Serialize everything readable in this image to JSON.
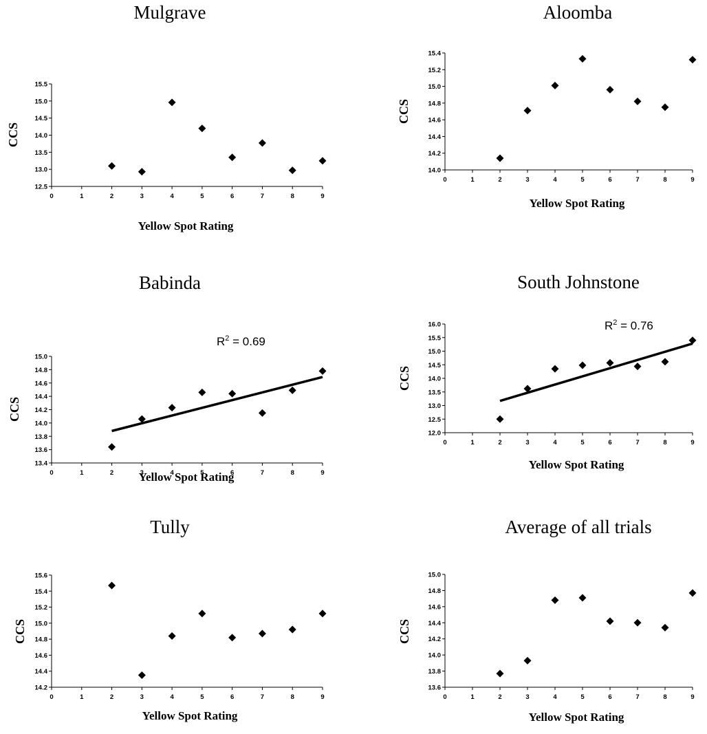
{
  "chart_data": [
    {
      "type": "scatter",
      "title": "Mulgrave",
      "xlabel": "Yellow Spot Rating",
      "ylabel": "CCS",
      "xlim": [
        0,
        9
      ],
      "ylim": [
        12.5,
        15.5
      ],
      "x_ticks": [
        0,
        1,
        2,
        3,
        4,
        5,
        6,
        7,
        8,
        9
      ],
      "y_ticks": [
        12.5,
        13.0,
        13.5,
        14.0,
        14.5,
        15.0,
        15.5
      ],
      "x_tick_labels": [
        "0",
        "1",
        "2",
        "3",
        "4",
        "5",
        "6",
        "7",
        "8",
        "9"
      ],
      "y_tick_labels": [
        "12.5",
        "13.0",
        "13.5",
        "14.0",
        "14.5",
        "15.0",
        "15.5"
      ],
      "x": [
        2,
        3,
        4,
        5,
        6,
        7,
        8,
        9
      ],
      "y": [
        13.1,
        12.93,
        14.96,
        14.2,
        13.35,
        13.77,
        12.97,
        13.25
      ],
      "grid": false
    },
    {
      "type": "scatter",
      "title": "Aloomba",
      "xlabel": "Yellow Spot Rating",
      "ylabel": "CCS",
      "xlim": [
        0,
        9
      ],
      "ylim": [
        14.0,
        15.4
      ],
      "x_ticks": [
        0,
        1,
        2,
        3,
        4,
        5,
        6,
        7,
        8,
        9
      ],
      "y_ticks": [
        14.0,
        14.2,
        14.4,
        14.6,
        14.8,
        15.0,
        15.2,
        15.4
      ],
      "x_tick_labels": [
        "0",
        "1",
        "2",
        "3",
        "4",
        "5",
        "6",
        "7",
        "8",
        "9"
      ],
      "y_tick_labels": [
        "14.0",
        "14.2",
        "14.4",
        "14.6",
        "14.8",
        "15.0",
        "15.2",
        "15.4"
      ],
      "x": [
        2,
        3,
        4,
        5,
        6,
        7,
        8,
        9
      ],
      "y": [
        14.14,
        14.71,
        15.01,
        15.33,
        14.96,
        14.82,
        14.75,
        15.32
      ],
      "grid": false
    },
    {
      "type": "scatter",
      "title": "Babinda",
      "xlabel": "Yellow Spot Rating",
      "ylabel": "CCS",
      "xlim": [
        0,
        9
      ],
      "ylim": [
        13.4,
        15.0
      ],
      "x_ticks": [
        0,
        1,
        2,
        3,
        4,
        5,
        6,
        7,
        8,
        9
      ],
      "y_ticks": [
        13.4,
        13.6,
        13.8,
        14.0,
        14.2,
        14.4,
        14.6,
        14.8,
        15.0
      ],
      "x_tick_labels": [
        "0",
        "1",
        "2",
        "3",
        "4",
        "5",
        "6",
        "7",
        "8",
        "9"
      ],
      "y_tick_labels": [
        "13.4",
        "13.6",
        "13.8",
        "14.0",
        "14.2",
        "14.4",
        "14.6",
        "14.8",
        "15.0"
      ],
      "x": [
        2,
        3,
        4,
        5,
        6,
        7,
        8,
        9
      ],
      "y": [
        13.64,
        14.06,
        14.23,
        14.46,
        14.44,
        14.15,
        14.49,
        14.78
      ],
      "trendline": {
        "x": [
          2,
          9
        ],
        "y": [
          13.88,
          14.69
        ]
      },
      "annotation": {
        "prefix": "R",
        "sup": "2",
        "suffix": " = 0.69"
      },
      "grid": false
    },
    {
      "type": "scatter",
      "title": "South Johnstone",
      "xlabel": "Yellow Spot Rating",
      "ylabel": "CCS",
      "xlim": [
        0,
        9
      ],
      "ylim": [
        12.0,
        16.0
      ],
      "x_ticks": [
        0,
        1,
        2,
        3,
        4,
        5,
        6,
        7,
        8,
        9
      ],
      "y_ticks": [
        12.0,
        12.5,
        13.0,
        13.5,
        14.0,
        14.5,
        15.0,
        15.5,
        16.0
      ],
      "x_tick_labels": [
        "0",
        "1",
        "2",
        "3",
        "4",
        "5",
        "6",
        "7",
        "8",
        "9"
      ],
      "y_tick_labels": [
        "12.0",
        "12.5",
        "13.0",
        "13.5",
        "14.0",
        "14.5",
        "15.0",
        "15.5",
        "16.0"
      ],
      "x": [
        2,
        3,
        4,
        5,
        6,
        7,
        8,
        9
      ],
      "y": [
        12.5,
        13.62,
        14.35,
        14.48,
        14.57,
        14.44,
        14.61,
        15.4
      ],
      "trendline": {
        "x": [
          2,
          9
        ],
        "y": [
          13.17,
          15.28
        ]
      },
      "annotation": {
        "prefix": "R",
        "sup": "2",
        "suffix": " = 0.76"
      },
      "grid": false
    },
    {
      "type": "scatter",
      "title": "Tully",
      "xlabel": "Yellow Spot Rating",
      "ylabel": "CCS",
      "xlim": [
        0,
        9
      ],
      "ylim": [
        14.2,
        15.6
      ],
      "x_ticks": [
        0,
        1,
        2,
        3,
        4,
        5,
        6,
        7,
        8,
        9
      ],
      "y_ticks": [
        14.2,
        14.4,
        14.6,
        14.8,
        15.0,
        15.2,
        15.4,
        15.6
      ],
      "x_tick_labels": [
        "0",
        "1",
        "2",
        "3",
        "4",
        "5",
        "6",
        "7",
        "8",
        "9"
      ],
      "y_tick_labels": [
        "14.2",
        "14.4",
        "14.6",
        "14.8",
        "15.0",
        "15.2",
        "15.4",
        "15.6"
      ],
      "x": [
        2,
        3,
        4,
        5,
        6,
        7,
        8,
        9
      ],
      "y": [
        15.47,
        14.35,
        14.84,
        15.12,
        14.82,
        14.87,
        14.92,
        15.12
      ],
      "grid": false
    },
    {
      "type": "scatter",
      "title": "Average of all trials",
      "xlabel": "Yellow Spot Rating",
      "ylabel": "CCS",
      "xlim": [
        0,
        9
      ],
      "ylim": [
        13.6,
        15.0
      ],
      "x_ticks": [
        0,
        1,
        2,
        3,
        4,
        5,
        6,
        7,
        8,
        9
      ],
      "y_ticks": [
        13.6,
        13.8,
        14.0,
        14.2,
        14.4,
        14.6,
        14.8,
        15.0
      ],
      "x_tick_labels": [
        "0",
        "1",
        "2",
        "3",
        "4",
        "5",
        "6",
        "7",
        "8",
        "9"
      ],
      "y_tick_labels": [
        "13.6",
        "13.8",
        "14.0",
        "14.2",
        "14.4",
        "14.6",
        "14.8",
        "15.0"
      ],
      "x": [
        2,
        3,
        4,
        5,
        6,
        7,
        8,
        9
      ],
      "y": [
        13.77,
        13.93,
        14.68,
        14.71,
        14.42,
        14.4,
        14.34,
        14.77
      ],
      "grid": false
    }
  ]
}
